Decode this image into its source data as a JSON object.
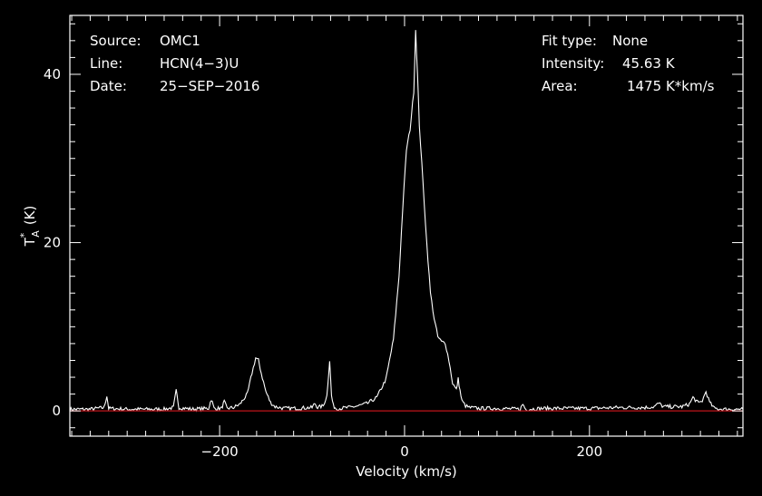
{
  "info": {
    "source_label": "Source:",
    "source_value": "OMC1",
    "line_label": "Line:",
    "line_value": "HCN(4−3)U",
    "date_label": "Date:",
    "date_value": "25−SEP−2016",
    "fit_label": "Fit type:",
    "fit_value": "None",
    "intensity_label": "Intensity:",
    "intensity_value": "45.63 K",
    "area_label": "Area:",
    "area_value": "1475 K*km/s"
  },
  "colors": {
    "background": "#000000",
    "axes": "#ffffff",
    "spectrum": "#ffffff",
    "baseline": "#c0141a"
  },
  "chart_data": {
    "type": "line",
    "title": "",
    "xlabel": "Velocity (km/s)",
    "ylabel": "T",
    "ylabel_sup": "*",
    "ylabel_sub": "A",
    "ylabel_unit": "(K)",
    "xlim": [
      -362,
      366
    ],
    "ylim": [
      -3,
      47
    ],
    "x_ticks": [
      -200,
      0,
      200
    ],
    "x_tick_labels": [
      "−200",
      "0",
      "200"
    ],
    "y_ticks": [
      0,
      20,
      40
    ],
    "y_tick_labels": [
      "0",
      "20",
      "40"
    ],
    "grid": false,
    "baseline_y": 0,
    "series": [
      {
        "x": [
          -362,
          -340,
          -325,
          -322,
          -320,
          -300,
          -260,
          -250,
          -247,
          -244,
          -230,
          -212,
          -209,
          -206,
          -198,
          -195,
          -192,
          -185,
          -178,
          -170,
          -165,
          -161,
          -158,
          -155,
          -150,
          -145,
          -140,
          -130,
          -120,
          -100,
          -97,
          -94,
          -88,
          -84,
          -81,
          -79,
          -77,
          -74,
          -70,
          -60,
          -50,
          -40,
          -30,
          -20,
          -12,
          -6,
          -2,
          2,
          6,
          10,
          12,
          14,
          16,
          20,
          24,
          28,
          32,
          36,
          40,
          44,
          48,
          52,
          56,
          58,
          60,
          62,
          66,
          70,
          80,
          100,
          125,
          128,
          131,
          150,
          170,
          200,
          230,
          260,
          270,
          275,
          280,
          300,
          308,
          312,
          318,
          322,
          326,
          330,
          335,
          345,
          366
        ],
        "y": [
          0.2,
          0.2,
          0.4,
          1.8,
          0.3,
          0.2,
          0.2,
          0.4,
          2.4,
          0.4,
          0.2,
          0.3,
          1.4,
          0.3,
          0.3,
          1.1,
          0.3,
          0.4,
          0.8,
          2.0,
          4.5,
          6.3,
          6.0,
          4.5,
          2.3,
          1.0,
          0.5,
          0.3,
          0.3,
          0.4,
          0.9,
          0.4,
          0.6,
          1.8,
          6.0,
          1.8,
          0.6,
          0.3,
          0.3,
          0.4,
          0.6,
          0.9,
          1.6,
          3.8,
          8.5,
          16.0,
          24.0,
          31.0,
          33.5,
          38.0,
          45.3,
          40.0,
          34.0,
          27.0,
          20.0,
          14.0,
          11.0,
          8.8,
          8.2,
          8.1,
          6.0,
          3.3,
          2.5,
          3.8,
          2.4,
          1.2,
          0.6,
          0.4,
          0.3,
          0.3,
          0.2,
          0.8,
          0.2,
          0.3,
          0.3,
          0.3,
          0.4,
          0.4,
          0.5,
          0.9,
          0.5,
          0.5,
          0.8,
          1.6,
          0.9,
          1.2,
          2.3,
          1.0,
          0.3,
          0.2,
          0.2
        ]
      }
    ]
  }
}
